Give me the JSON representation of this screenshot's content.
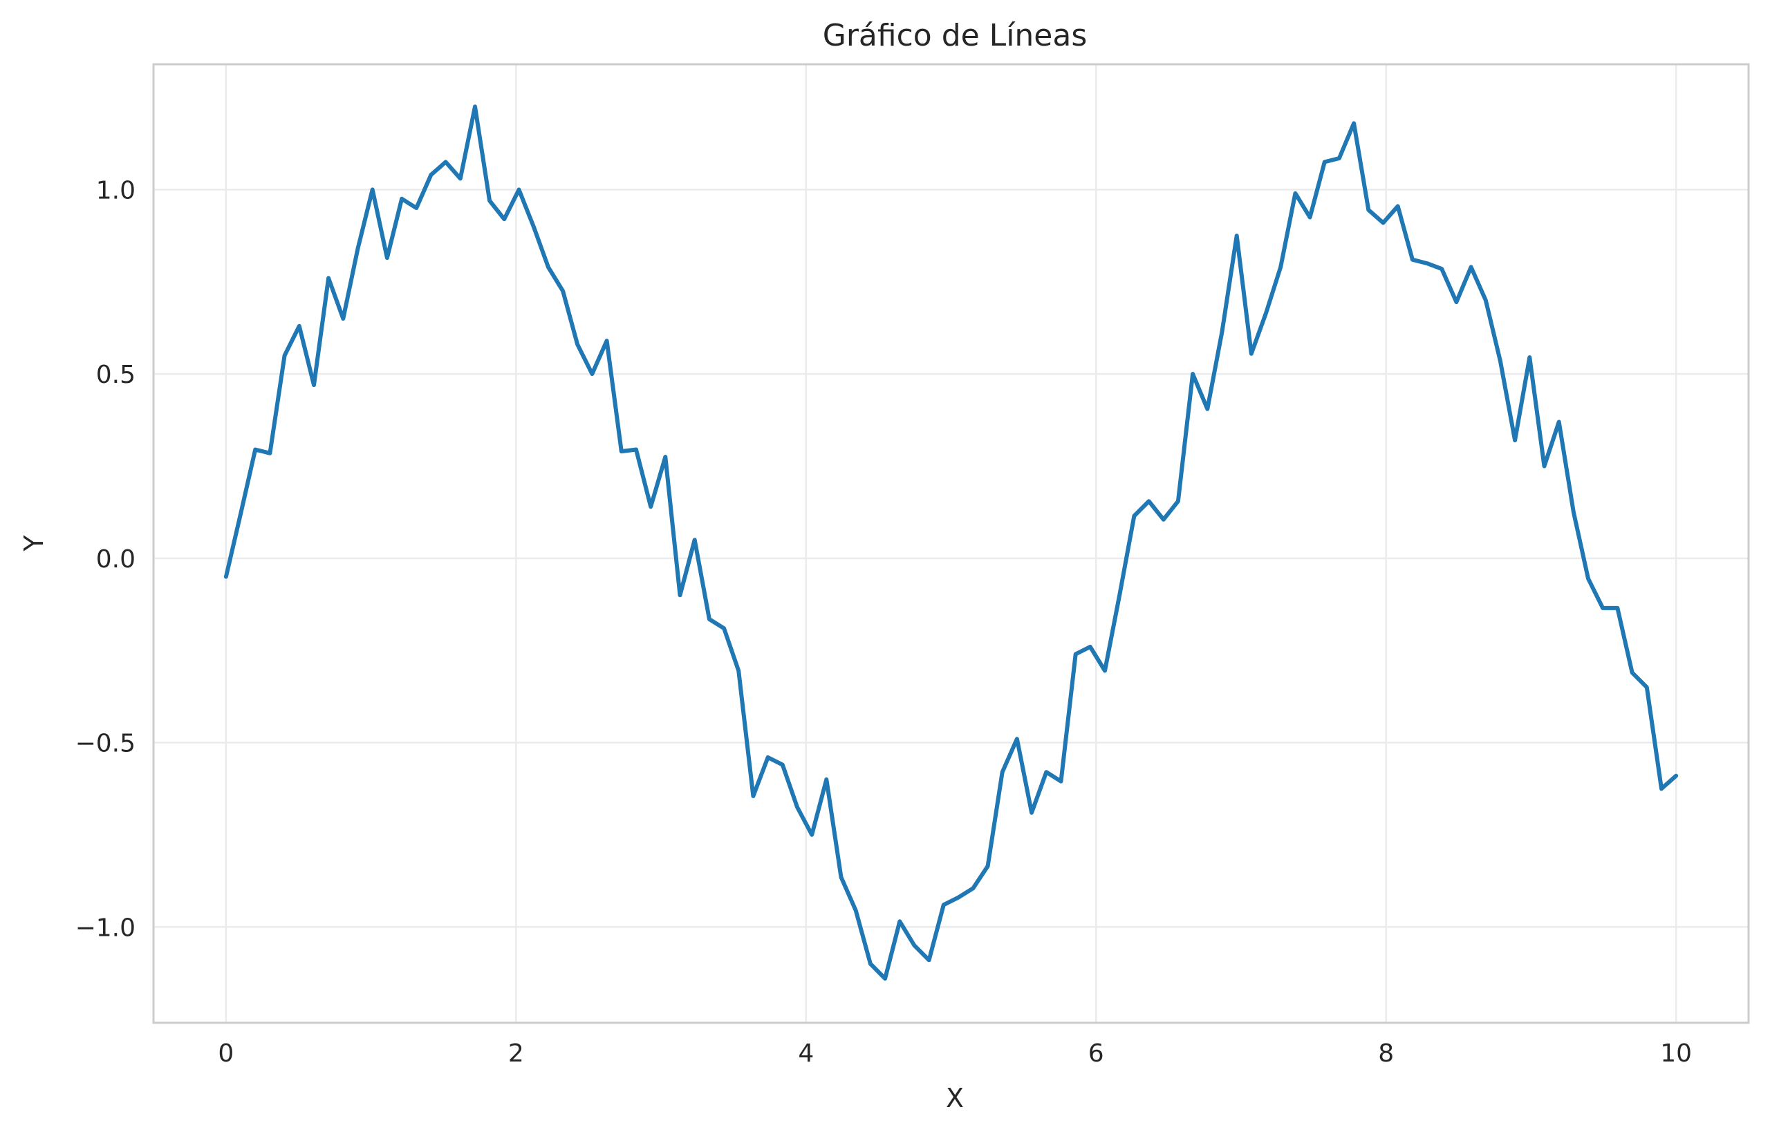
{
  "chart_data": {
    "type": "line",
    "title": "Gráfico de Líneas",
    "xlabel": "X",
    "ylabel": "Y",
    "xlim": [
      -0.5,
      10.5
    ],
    "ylim": [
      -1.26,
      1.34
    ],
    "xticks": [
      0,
      2,
      4,
      6,
      8,
      10
    ],
    "xtick_labels": [
      "0",
      "2",
      "4",
      "6",
      "8",
      "10"
    ],
    "yticks": [
      -1.0,
      -0.5,
      0.0,
      0.5,
      1.0
    ],
    "ytick_labels": [
      "−1.0",
      "−0.5",
      "0.0",
      "0.5",
      "1.0"
    ],
    "grid": true,
    "line_color": "#1f77b4",
    "grid_color": "#ebebeb",
    "frame_color": "#cccccc",
    "series": [
      {
        "x": [
          0.0,
          0.101,
          0.202,
          0.303,
          0.404,
          0.505,
          0.606,
          0.707,
          0.808,
          0.909,
          1.01,
          1.111,
          1.212,
          1.313,
          1.414,
          1.515,
          1.616,
          1.717,
          1.818,
          1.919,
          2.02,
          2.121,
          2.222,
          2.323,
          2.424,
          2.525,
          2.626,
          2.727,
          2.828,
          2.929,
          3.03,
          3.131,
          3.232,
          3.333,
          3.434,
          3.535,
          3.636,
          3.737,
          3.838,
          3.939,
          4.04,
          4.141,
          4.242,
          4.343,
          4.444,
          4.545,
          4.646,
          4.747,
          4.848,
          4.949,
          5.051,
          5.152,
          5.253,
          5.354,
          5.455,
          5.556,
          5.657,
          5.758,
          5.859,
          5.96,
          6.061,
          6.162,
          6.263,
          6.364,
          6.465,
          6.566,
          6.667,
          6.768,
          6.869,
          6.97,
          7.071,
          7.172,
          7.273,
          7.374,
          7.475,
          7.576,
          7.677,
          7.778,
          7.879,
          7.98,
          8.081,
          8.182,
          8.283,
          8.384,
          8.485,
          8.586,
          8.687,
          8.788,
          8.889,
          8.99,
          9.091,
          9.192,
          9.293,
          9.394,
          9.495,
          9.596,
          9.697,
          9.798,
          9.899,
          10.0
        ],
        "y": [
          -0.05,
          0.12,
          0.295,
          0.285,
          0.55,
          0.63,
          0.47,
          0.76,
          0.65,
          0.84,
          1.0,
          0.815,
          0.975,
          0.95,
          1.04,
          1.075,
          1.03,
          1.225,
          0.97,
          0.92,
          1.0,
          0.9,
          0.79,
          0.725,
          0.58,
          0.5,
          0.59,
          0.29,
          0.295,
          0.14,
          0.275,
          -0.1,
          0.05,
          -0.165,
          -0.19,
          -0.305,
          -0.645,
          -0.54,
          -0.56,
          -0.675,
          -0.75,
          -0.6,
          -0.865,
          -0.955,
          -1.1,
          -1.14,
          -0.985,
          -1.05,
          -1.09,
          -0.94,
          -0.92,
          -0.895,
          -0.835,
          -0.58,
          -0.49,
          -0.69,
          -0.58,
          -0.605,
          -0.26,
          -0.24,
          -0.305,
          -0.1,
          0.115,
          0.155,
          0.105,
          0.155,
          0.5,
          0.405,
          0.615,
          0.875,
          0.555,
          0.665,
          0.79,
          0.99,
          0.925,
          1.075,
          1.085,
          1.18,
          0.945,
          0.91,
          0.955,
          0.81,
          0.8,
          0.785,
          0.695,
          0.79,
          0.7,
          0.535,
          0.32,
          0.545,
          0.25,
          0.37,
          0.125,
          -0.055,
          -0.135,
          -0.135,
          -0.31,
          -0.35,
          -0.625,
          -0.59
        ]
      }
    ]
  }
}
